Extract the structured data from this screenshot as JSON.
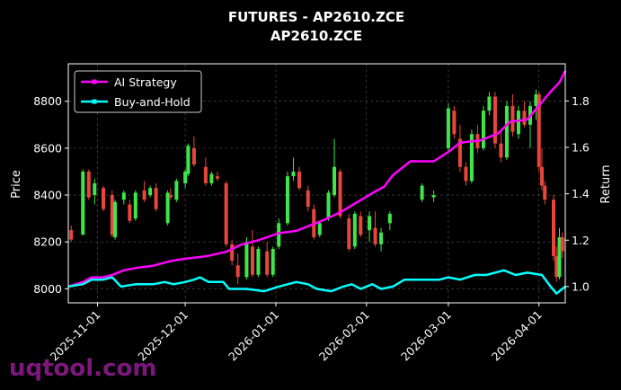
{
  "chart_data": {
    "type": "candlestick+line",
    "title": "FUTURES - AP2610.ZCE",
    "subtitle": "AP2610.ZCE",
    "ylabel_left": "Price",
    "ylabel_right": "Return",
    "ylim_left": [
      7940,
      8960
    ],
    "ylim_right": [
      0.93,
      1.96
    ],
    "x_range": [
      "2025-10-22",
      "2026-04-10"
    ],
    "x_ticks": [
      "2025-11-01",
      "2025-12-01",
      "2026-01-01",
      "2026-02-01",
      "2026-03-01",
      "2026-04-01"
    ],
    "y_ticks_left": [
      8000,
      8200,
      8400,
      8600,
      8800
    ],
    "y_ticks_right": [
      1.0,
      1.2,
      1.4,
      1.6,
      1.8
    ],
    "grid": true,
    "legend_position": "top-left",
    "colors": {
      "up": "#3ee64a",
      "down": "#e8463d",
      "strategy": "#ff00ff",
      "buyhold": "#00ffff",
      "background": "#000000"
    },
    "series": [
      {
        "name": "AI Strategy",
        "axis": "right",
        "points": [
          [
            "2025-10-22",
            1.0
          ],
          [
            "2025-10-27",
            1.02
          ],
          [
            "2025-10-30",
            1.04
          ],
          [
            "2025-11-03",
            1.04
          ],
          [
            "2025-11-06",
            1.05
          ],
          [
            "2025-11-10",
            1.07
          ],
          [
            "2025-11-14",
            1.08
          ],
          [
            "2025-11-20",
            1.09
          ],
          [
            "2025-11-26",
            1.11
          ],
          [
            "2025-12-01",
            1.12
          ],
          [
            "2025-12-08",
            1.13
          ],
          [
            "2025-12-15",
            1.15
          ],
          [
            "2025-12-20",
            1.18
          ],
          [
            "2025-12-26",
            1.2
          ],
          [
            "2026-01-02",
            1.23
          ],
          [
            "2026-01-08",
            1.24
          ],
          [
            "2026-01-14",
            1.27
          ],
          [
            "2026-01-18",
            1.29
          ],
          [
            "2026-01-23",
            1.32
          ],
          [
            "2026-01-27",
            1.35
          ],
          [
            "2026-01-31",
            1.38
          ],
          [
            "2026-02-04",
            1.41
          ],
          [
            "2026-02-07",
            1.43
          ],
          [
            "2026-02-10",
            1.48
          ],
          [
            "2026-02-16",
            1.54
          ],
          [
            "2026-02-24",
            1.54
          ],
          [
            "2026-03-01",
            1.58
          ],
          [
            "2026-03-05",
            1.62
          ],
          [
            "2026-03-12",
            1.63
          ],
          [
            "2026-03-18",
            1.66
          ],
          [
            "2026-03-22",
            1.71
          ],
          [
            "2026-03-28",
            1.72
          ],
          [
            "2026-04-01",
            1.78
          ],
          [
            "2026-04-05",
            1.84
          ],
          [
            "2026-04-08",
            1.88
          ],
          [
            "2026-04-10",
            1.93
          ]
        ]
      },
      {
        "name": "Buy-and-Hold",
        "axis": "right",
        "points": [
          [
            "2025-10-22",
            1.0
          ],
          [
            "2025-10-27",
            1.01
          ],
          [
            "2025-10-30",
            1.03
          ],
          [
            "2025-11-03",
            1.03
          ],
          [
            "2025-11-06",
            1.04
          ],
          [
            "2025-11-09",
            1.0
          ],
          [
            "2025-11-14",
            1.01
          ],
          [
            "2025-11-20",
            1.01
          ],
          [
            "2025-11-24",
            1.02
          ],
          [
            "2025-11-27",
            1.01
          ],
          [
            "2025-12-01",
            1.02
          ],
          [
            "2025-12-04",
            1.03
          ],
          [
            "2025-12-06",
            1.04
          ],
          [
            "2025-12-09",
            1.02
          ],
          [
            "2025-12-14",
            1.02
          ],
          [
            "2025-12-16",
            0.99
          ],
          [
            "2025-12-22",
            0.99
          ],
          [
            "2025-12-28",
            0.98
          ],
          [
            "2026-01-02",
            1.0
          ],
          [
            "2026-01-08",
            1.02
          ],
          [
            "2026-01-12",
            1.01
          ],
          [
            "2026-01-15",
            0.99
          ],
          [
            "2026-01-20",
            0.98
          ],
          [
            "2026-01-24",
            1.0
          ],
          [
            "2026-01-27",
            1.01
          ],
          [
            "2026-01-30",
            0.99
          ],
          [
            "2026-02-03",
            1.01
          ],
          [
            "2026-02-06",
            0.99
          ],
          [
            "2026-02-10",
            1.0
          ],
          [
            "2026-02-14",
            1.03
          ],
          [
            "2026-02-20",
            1.03
          ],
          [
            "2026-02-26",
            1.03
          ],
          [
            "2026-03-01",
            1.04
          ],
          [
            "2026-03-05",
            1.03
          ],
          [
            "2026-03-10",
            1.05
          ],
          [
            "2026-03-14",
            1.05
          ],
          [
            "2026-03-20",
            1.07
          ],
          [
            "2026-03-24",
            1.05
          ],
          [
            "2026-03-28",
            1.06
          ],
          [
            "2026-04-02",
            1.05
          ],
          [
            "2026-04-05",
            1.0
          ],
          [
            "2026-04-07",
            0.97
          ],
          [
            "2026-04-10",
            1.0
          ]
        ]
      }
    ],
    "candles": [
      [
        "2025-10-23",
        8250,
        8270,
        8200,
        8210
      ],
      [
        "2025-10-27",
        8230,
        8510,
        8230,
        8500
      ],
      [
        "2025-10-29",
        8500,
        8510,
        8380,
        8390
      ],
      [
        "2025-10-31",
        8400,
        8470,
        8360,
        8450
      ],
      [
        "2025-11-03",
        8430,
        8440,
        8330,
        8340
      ],
      [
        "2025-11-06",
        8400,
        8420,
        8220,
        8230
      ],
      [
        "2025-11-07",
        8220,
        8380,
        8210,
        8370
      ],
      [
        "2025-11-10",
        8380,
        8420,
        8360,
        8410
      ],
      [
        "2025-11-12",
        8360,
        8380,
        8280,
        8290
      ],
      [
        "2025-11-14",
        8300,
        8420,
        8290,
        8410
      ],
      [
        "2025-11-17",
        8420,
        8460,
        8370,
        8380
      ],
      [
        "2025-11-19",
        8400,
        8440,
        8390,
        8430
      ],
      [
        "2025-11-21",
        8430,
        8450,
        8330,
        8340
      ],
      [
        "2025-11-25",
        8280,
        8420,
        8270,
        8410
      ],
      [
        "2025-11-26",
        8400,
        8430,
        8380,
        8390
      ],
      [
        "2025-11-28",
        8380,
        8470,
        8370,
        8460
      ],
      [
        "2025-12-01",
        8450,
        8510,
        8430,
        8500
      ],
      [
        "2025-12-02",
        8490,
        8620,
        8480,
        8610
      ],
      [
        "2025-12-04",
        8600,
        8650,
        8520,
        8530
      ],
      [
        "2025-12-08",
        8520,
        8560,
        8440,
        8450
      ],
      [
        "2025-12-10",
        8450,
        8500,
        8440,
        8490
      ],
      [
        "2025-12-12",
        8480,
        8500,
        8460,
        8470
      ],
      [
        "2025-12-15",
        8450,
        8460,
        8180,
        8190
      ],
      [
        "2025-12-17",
        8190,
        8210,
        8100,
        8120
      ],
      [
        "2025-12-19",
        8100,
        8150,
        8020,
        8050
      ],
      [
        "2025-12-22",
        8050,
        8220,
        8040,
        8200
      ],
      [
        "2025-12-24",
        8180,
        8250,
        8050,
        8060
      ],
      [
        "2025-12-26",
        8060,
        8180,
        8050,
        8170
      ],
      [
        "2025-12-29",
        8160,
        8200,
        8050,
        8060
      ],
      [
        "2025-12-31",
        8060,
        8180,
        8050,
        8170
      ],
      [
        "2026-01-02",
        8180,
        8300,
        8170,
        8280
      ],
      [
        "2026-01-05",
        8280,
        8500,
        8270,
        8480
      ],
      [
        "2026-01-07",
        8480,
        8560,
        8460,
        8500
      ],
      [
        "2026-01-09",
        8500,
        8520,
        8420,
        8430
      ],
      [
        "2026-01-12",
        8420,
        8440,
        8330,
        8350
      ],
      [
        "2026-01-14",
        8340,
        8360,
        8210,
        8220
      ],
      [
        "2026-01-16",
        8230,
        8290,
        8220,
        8280
      ],
      [
        "2026-01-19",
        8300,
        8420,
        8290,
        8410
      ],
      [
        "2026-01-21",
        8400,
        8640,
        8390,
        8520
      ],
      [
        "2026-01-23",
        8500,
        8510,
        8300,
        8310
      ],
      [
        "2026-01-26",
        8300,
        8320,
        8160,
        8170
      ],
      [
        "2026-01-28",
        8180,
        8330,
        8170,
        8320
      ],
      [
        "2026-01-30",
        8310,
        8330,
        8220,
        8230
      ],
      [
        "2026-02-02",
        8250,
        8330,
        8200,
        8310
      ],
      [
        "2026-02-04",
        8260,
        8330,
        8180,
        8190
      ],
      [
        "2026-02-06",
        8190,
        8260,
        8160,
        8240
      ],
      [
        "2026-02-09",
        8280,
        8330,
        8250,
        8320
      ],
      [
        "2026-02-20",
        8380,
        8450,
        8370,
        8440
      ],
      [
        "2026-02-24",
        8390,
        8420,
        8370,
        8400
      ],
      [
        "2026-03-01",
        8600,
        8790,
        8580,
        8770
      ],
      [
        "2026-03-03",
        8760,
        8780,
        8640,
        8660
      ],
      [
        "2026-03-05",
        8640,
        8700,
        8500,
        8520
      ],
      [
        "2026-03-07",
        8520,
        8540,
        8440,
        8460
      ],
      [
        "2026-03-09",
        8460,
        8680,
        8450,
        8660
      ],
      [
        "2026-03-11",
        8660,
        8700,
        8580,
        8600
      ],
      [
        "2026-03-13",
        8600,
        8780,
        8590,
        8760
      ],
      [
        "2026-03-15",
        8760,
        8840,
        8740,
        8820
      ],
      [
        "2026-03-17",
        8820,
        8840,
        8600,
        8620
      ],
      [
        "2026-03-19",
        8620,
        8680,
        8540,
        8560
      ],
      [
        "2026-03-21",
        8560,
        8800,
        8550,
        8780
      ],
      [
        "2026-03-23",
        8780,
        8830,
        8650,
        8670
      ],
      [
        "2026-03-25",
        8660,
        8780,
        8640,
        8760
      ],
      [
        "2026-03-27",
        8760,
        8800,
        8690,
        8700
      ],
      [
        "2026-03-29",
        8700,
        8800,
        8600,
        8780
      ],
      [
        "2026-03-31",
        8780,
        8850,
        8720,
        8830
      ],
      [
        "2026-04-01",
        8830,
        8840,
        8500,
        8520
      ],
      [
        "2026-04-02",
        8520,
        8600,
        8420,
        8440
      ],
      [
        "2026-04-03",
        8440,
        8460,
        8360,
        8380
      ],
      [
        "2026-04-06",
        8380,
        8400,
        8120,
        8140
      ],
      [
        "2026-04-07",
        8140,
        8180,
        8030,
        8050
      ],
      [
        "2026-04-08",
        8050,
        8260,
        8040,
        8220
      ],
      [
        "2026-04-09",
        8220,
        8240,
        8130,
        8160
      ]
    ]
  },
  "watermark": "uqtool.com"
}
